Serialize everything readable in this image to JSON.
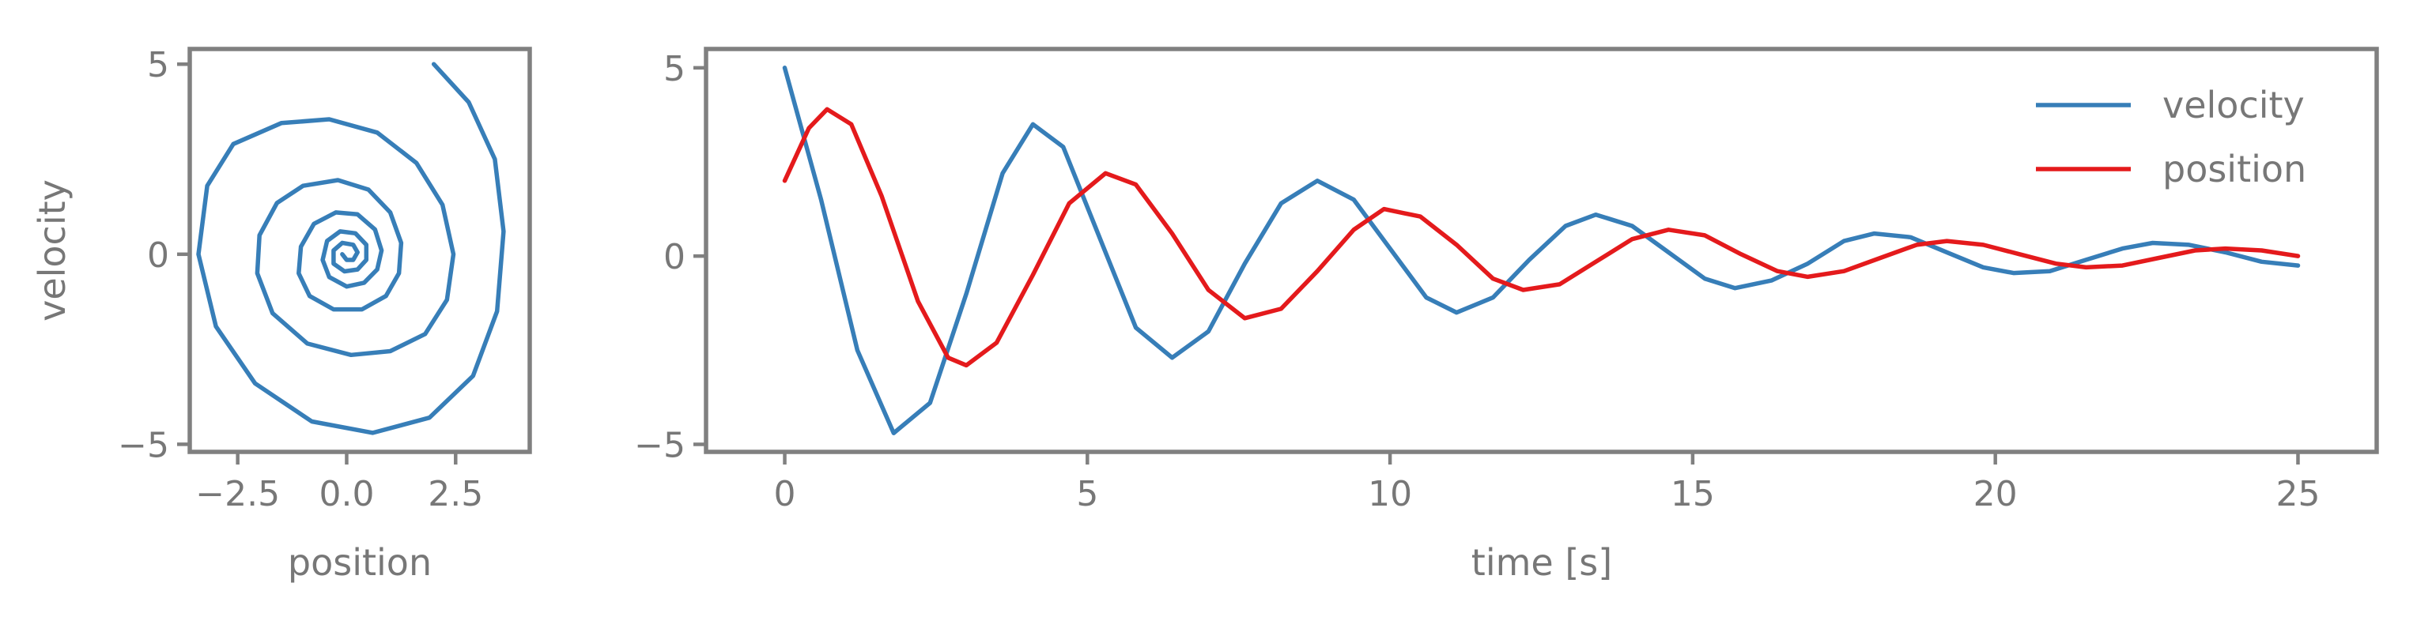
{
  "chart_data": [
    {
      "type": "line",
      "subtype": "phase-portrait",
      "title": "",
      "xlabel": "position",
      "ylabel": "velocity",
      "xlim": [
        -3.6,
        4.2
      ],
      "ylim": [
        -5.2,
        5.4
      ],
      "xticks": [
        -2.5,
        0.0,
        2.5
      ],
      "xtick_labels": [
        "−2.5",
        "0.0",
        "2.5"
      ],
      "yticks": [
        -5,
        0,
        5
      ],
      "ytick_labels": [
        "−5",
        "0",
        "5"
      ],
      "grid": false,
      "series": [
        {
          "color": "#377eb8",
          "points": [
            [
              2.0,
              5.0
            ],
            [
              2.8,
              4.0
            ],
            [
              3.4,
              2.5
            ],
            [
              3.6,
              0.6
            ],
            [
              3.45,
              -1.5
            ],
            [
              2.9,
              -3.2
            ],
            [
              1.9,
              -4.3
            ],
            [
              0.6,
              -4.7
            ],
            [
              -0.8,
              -4.4
            ],
            [
              -2.1,
              -3.4
            ],
            [
              -3.0,
              -1.9
            ],
            [
              -3.4,
              0.0
            ],
            [
              -3.2,
              1.8
            ],
            [
              -2.6,
              2.9
            ],
            [
              -1.5,
              3.45
            ],
            [
              -0.4,
              3.55
            ],
            [
              0.7,
              3.2
            ],
            [
              1.6,
              2.4
            ],
            [
              2.2,
              1.3
            ],
            [
              2.45,
              0.0
            ],
            [
              2.3,
              -1.2
            ],
            [
              1.8,
              -2.1
            ],
            [
              1.0,
              -2.55
            ],
            [
              0.1,
              -2.65
            ],
            [
              -0.9,
              -2.35
            ],
            [
              -1.7,
              -1.55
            ],
            [
              -2.05,
              -0.5
            ],
            [
              -2.0,
              0.5
            ],
            [
              -1.6,
              1.35
            ],
            [
              -1.0,
              1.8
            ],
            [
              -0.2,
              1.95
            ],
            [
              0.5,
              1.7
            ],
            [
              1.0,
              1.1
            ],
            [
              1.25,
              0.3
            ],
            [
              1.2,
              -0.5
            ],
            [
              0.9,
              -1.1
            ],
            [
              0.35,
              -1.45
            ],
            [
              -0.3,
              -1.45
            ],
            [
              -0.85,
              -1.1
            ],
            [
              -1.1,
              -0.5
            ],
            [
              -1.05,
              0.2
            ],
            [
              -0.75,
              0.8
            ],
            [
              -0.25,
              1.1
            ],
            [
              0.25,
              1.05
            ],
            [
              0.65,
              0.65
            ],
            [
              0.8,
              0.1
            ],
            [
              0.7,
              -0.4
            ],
            [
              0.4,
              -0.75
            ],
            [
              0.0,
              -0.85
            ],
            [
              -0.4,
              -0.6
            ],
            [
              -0.55,
              -0.15
            ],
            [
              -0.45,
              0.35
            ],
            [
              -0.15,
              0.6
            ],
            [
              0.2,
              0.55
            ],
            [
              0.45,
              0.25
            ],
            [
              0.45,
              -0.15
            ],
            [
              0.25,
              -0.4
            ],
            [
              -0.05,
              -0.45
            ],
            [
              -0.3,
              -0.25
            ],
            [
              -0.3,
              0.1
            ],
            [
              -0.1,
              0.3
            ],
            [
              0.15,
              0.25
            ],
            [
              0.25,
              0.05
            ],
            [
              0.15,
              -0.15
            ],
            [
              0.0,
              -0.15
            ],
            [
              -0.1,
              0.0
            ]
          ]
        }
      ]
    },
    {
      "type": "line",
      "title": "",
      "xlabel": "time [s]",
      "ylabel": "",
      "xlim": [
        -1.3,
        26.3
      ],
      "ylim": [
        -5.2,
        5.5
      ],
      "xticks": [
        0,
        5,
        10,
        15,
        20,
        25
      ],
      "xtick_labels": [
        "0",
        "5",
        "10",
        "15",
        "20",
        "25"
      ],
      "yticks": [
        -5,
        0,
        5
      ],
      "ytick_labels": [
        "−5",
        "0",
        "5"
      ],
      "grid": false,
      "legend": "top-right",
      "series": [
        {
          "name": "velocity",
          "color": "#377eb8",
          "points": [
            [
              0.0,
              5.0
            ],
            [
              0.6,
              1.5
            ],
            [
              1.2,
              -2.5
            ],
            [
              1.8,
              -4.7
            ],
            [
              2.4,
              -3.9
            ],
            [
              3.0,
              -1.0
            ],
            [
              3.6,
              2.2
            ],
            [
              4.1,
              3.5
            ],
            [
              4.6,
              2.9
            ],
            [
              5.2,
              0.5
            ],
            [
              5.8,
              -1.9
            ],
            [
              6.4,
              -2.7
            ],
            [
              7.0,
              -2.0
            ],
            [
              7.6,
              -0.2
            ],
            [
              8.2,
              1.4
            ],
            [
              8.8,
              2.0
            ],
            [
              9.4,
              1.5
            ],
            [
              10.0,
              0.2
            ],
            [
              10.6,
              -1.1
            ],
            [
              11.1,
              -1.5
            ],
            [
              11.7,
              -1.1
            ],
            [
              12.3,
              -0.1
            ],
            [
              12.9,
              0.8
            ],
            [
              13.4,
              1.1
            ],
            [
              14.0,
              0.8
            ],
            [
              14.6,
              0.1
            ],
            [
              15.2,
              -0.6
            ],
            [
              15.7,
              -0.85
            ],
            [
              16.3,
              -0.65
            ],
            [
              16.9,
              -0.2
            ],
            [
              17.5,
              0.4
            ],
            [
              18.0,
              0.6
            ],
            [
              18.6,
              0.5
            ],
            [
              19.2,
              0.1
            ],
            [
              19.8,
              -0.3
            ],
            [
              20.3,
              -0.45
            ],
            [
              20.9,
              -0.4
            ],
            [
              21.5,
              -0.1
            ],
            [
              22.1,
              0.2
            ],
            [
              22.6,
              0.35
            ],
            [
              23.2,
              0.3
            ],
            [
              23.8,
              0.1
            ],
            [
              24.4,
              -0.15
            ],
            [
              25.0,
              -0.25
            ]
          ]
        },
        {
          "name": "position",
          "color": "#e41a1c",
          "points": [
            [
              0.0,
              2.0
            ],
            [
              0.4,
              3.4
            ],
            [
              0.7,
              3.9
            ],
            [
              1.1,
              3.5
            ],
            [
              1.6,
              1.6
            ],
            [
              2.2,
              -1.2
            ],
            [
              2.7,
              -2.7
            ],
            [
              3.0,
              -2.9
            ],
            [
              3.5,
              -2.3
            ],
            [
              4.1,
              -0.5
            ],
            [
              4.7,
              1.4
            ],
            [
              5.3,
              2.2
            ],
            [
              5.8,
              1.9
            ],
            [
              6.4,
              0.6
            ],
            [
              7.0,
              -0.9
            ],
            [
              7.6,
              -1.65
            ],
            [
              8.2,
              -1.4
            ],
            [
              8.8,
              -0.4
            ],
            [
              9.4,
              0.7
            ],
            [
              9.9,
              1.25
            ],
            [
              10.5,
              1.05
            ],
            [
              11.1,
              0.3
            ],
            [
              11.7,
              -0.6
            ],
            [
              12.2,
              -0.9
            ],
            [
              12.8,
              -0.75
            ],
            [
              13.4,
              -0.15
            ],
            [
              14.0,
              0.45
            ],
            [
              14.6,
              0.7
            ],
            [
              15.2,
              0.55
            ],
            [
              15.8,
              0.05
            ],
            [
              16.4,
              -0.4
            ],
            [
              16.9,
              -0.55
            ],
            [
              17.5,
              -0.4
            ],
            [
              18.1,
              -0.05
            ],
            [
              18.7,
              0.3
            ],
            [
              19.2,
              0.4
            ],
            [
              19.8,
              0.3
            ],
            [
              20.4,
              0.05
            ],
            [
              21.0,
              -0.2
            ],
            [
              21.5,
              -0.3
            ],
            [
              22.1,
              -0.25
            ],
            [
              22.7,
              -0.05
            ],
            [
              23.3,
              0.15
            ],
            [
              23.8,
              0.2
            ],
            [
              24.4,
              0.15
            ],
            [
              25.0,
              0.0
            ]
          ]
        }
      ]
    }
  ]
}
